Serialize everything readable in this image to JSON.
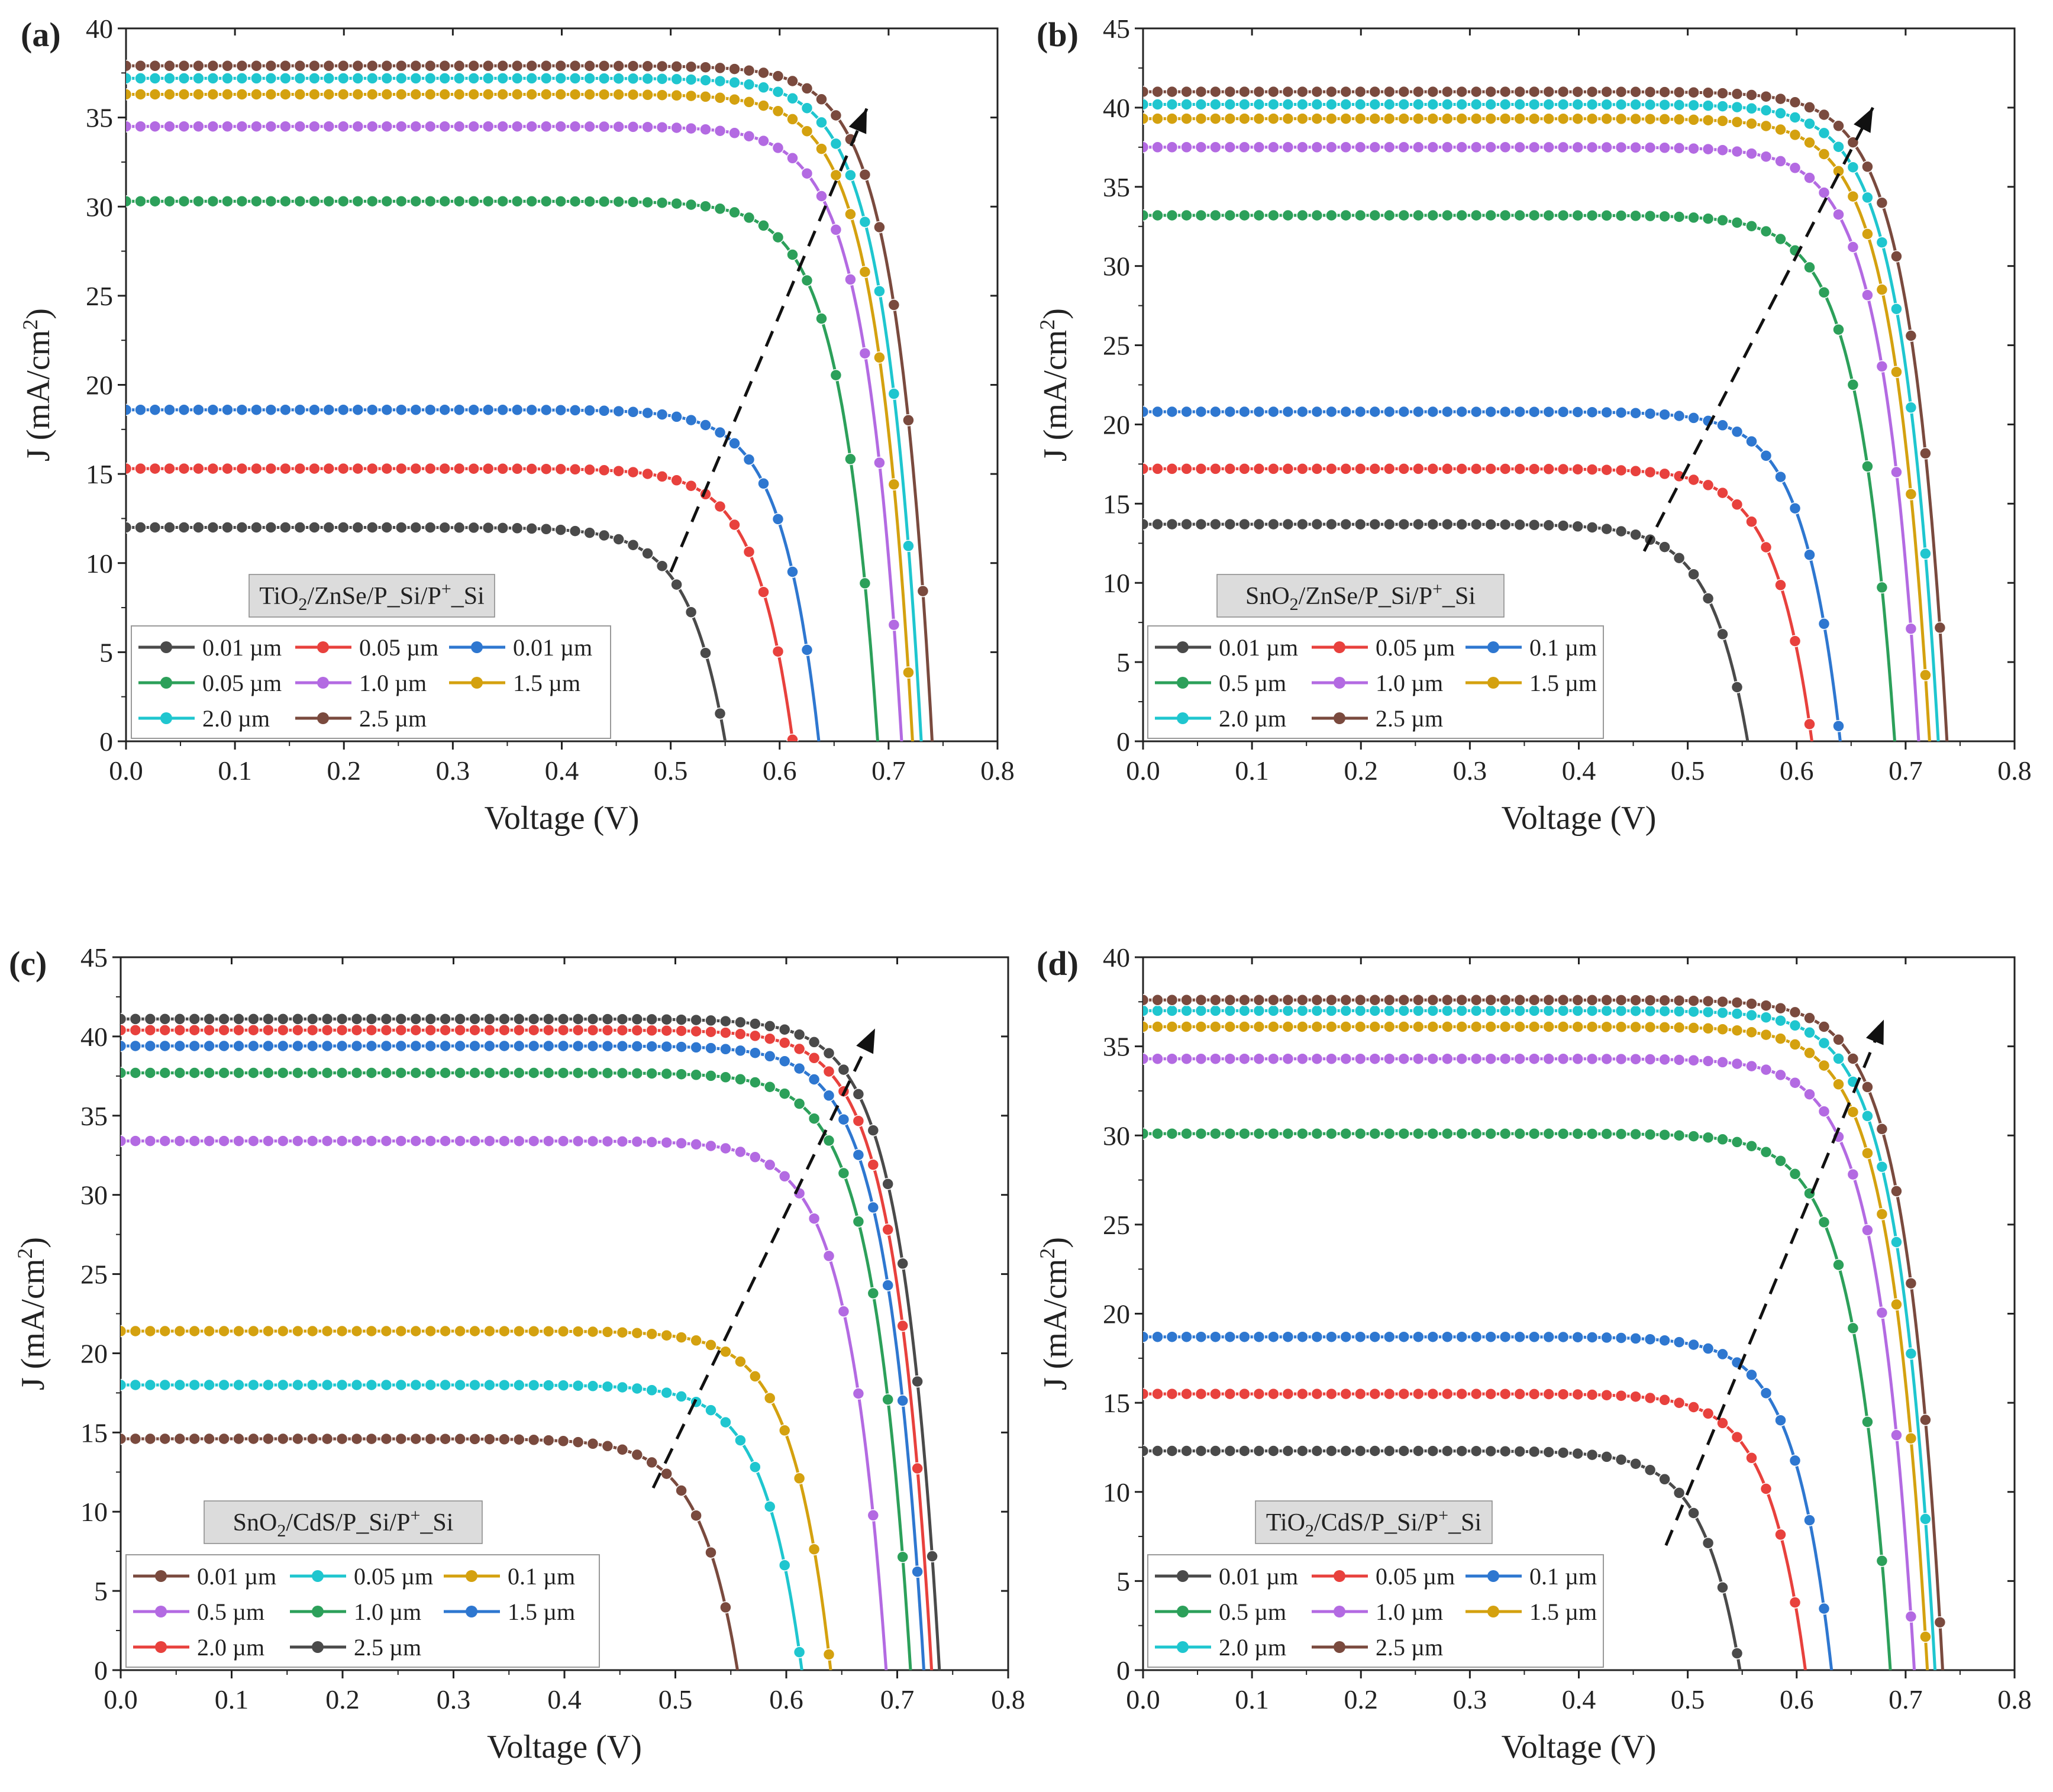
{
  "figure": {
    "xlabel": "Voltage (V)",
    "ylabel_main": "J (mA/cm",
    "ylabel_sup": "2",
    "ylabel_close": ")"
  },
  "chart_data": [
    {
      "panel": "(a)",
      "type": "line",
      "title_parts": [
        [
          "TiO",
          ""
        ],
        [
          "2",
          "sub"
        ],
        [
          "/ZnSe/P_Si/P",
          ""
        ],
        [
          "+",
          "sup"
        ],
        [
          "_Si",
          ""
        ]
      ],
      "xlabel": "Voltage (V)",
      "ylabel": "J (mA/cm2)",
      "xlim": [
        0,
        0.8
      ],
      "ylim": [
        0,
        40
      ],
      "xticks": [
        "0.0",
        "0.1",
        "0.2",
        "0.3",
        "0.4",
        "0.5",
        "0.6",
        "0.7",
        "0.8"
      ],
      "yticks": [
        "0",
        "5",
        "10",
        "15",
        "20",
        "25",
        "30",
        "35",
        "40"
      ],
      "legend_position": "bottom-left",
      "legend_cols": 3,
      "arrow": [
        [
          0.5,
          9.5
        ],
        [
          0.68,
          35.5
        ]
      ],
      "series": [
        {
          "name": "0.01 µm",
          "color": "#4a4a4a",
          "jsc": 12.0,
          "voc": 0.55
        },
        {
          "name": "0.05 µm",
          "color": "#e8413d",
          "jsc": 15.3,
          "voc": 0.612
        },
        {
          "name": "0.01 µm",
          "color": "#2e77d0",
          "jsc": 18.6,
          "voc": 0.636
        },
        {
          "name": "0.05 µm",
          "color": "#2ca05a",
          "jsc": 30.3,
          "voc": 0.69
        },
        {
          "name": "1.0 µm",
          "color": "#b36ae2",
          "jsc": 34.5,
          "voc": 0.712
        },
        {
          "name": "1.5 µm",
          "color": "#d4a10f",
          "jsc": 36.3,
          "voc": 0.722
        },
        {
          "name": "2.0 µm",
          "color": "#1fc6cf",
          "jsc": 37.2,
          "voc": 0.73
        },
        {
          "name": "2.5 µm",
          "color": "#7a4a3e",
          "jsc": 37.9,
          "voc": 0.74
        }
      ]
    },
    {
      "panel": "(b)",
      "type": "line",
      "title_parts": [
        [
          "SnO",
          ""
        ],
        [
          "2",
          "sub"
        ],
        [
          "/ZnSe/P_Si/P",
          ""
        ],
        [
          "+",
          "sup"
        ],
        [
          "_Si",
          ""
        ]
      ],
      "xlabel": "Voltage (V)",
      "ylabel": "J (mA/cm2)",
      "xlim": [
        0,
        0.8
      ],
      "ylim": [
        0,
        45
      ],
      "xticks": [
        "0.0",
        "0.1",
        "0.2",
        "0.3",
        "0.4",
        "0.5",
        "0.6",
        "0.7",
        "0.8"
      ],
      "yticks": [
        "0",
        "5",
        "10",
        "15",
        "20",
        "25",
        "30",
        "35",
        "40",
        "45"
      ],
      "legend_position": "bottom-left",
      "legend_cols": 3,
      "arrow": [
        [
          0.46,
          12.0
        ],
        [
          0.67,
          40.0
        ]
      ],
      "series": [
        {
          "name": "0.01 µm",
          "color": "#4a4a4a",
          "jsc": 13.7,
          "voc": 0.555
        },
        {
          "name": "0.05 µm",
          "color": "#e8413d",
          "jsc": 17.2,
          "voc": 0.614
        },
        {
          "name": "0.1 µm",
          "color": "#2e77d0",
          "jsc": 20.8,
          "voc": 0.64
        },
        {
          "name": "0.5 µm",
          "color": "#2ca05a",
          "jsc": 33.2,
          "voc": 0.69
        },
        {
          "name": "1.0 µm",
          "color": "#b36ae2",
          "jsc": 37.5,
          "voc": 0.712
        },
        {
          "name": "1.5 µm",
          "color": "#d4a10f",
          "jsc": 39.3,
          "voc": 0.722
        },
        {
          "name": "2.0 µm",
          "color": "#1fc6cf",
          "jsc": 40.2,
          "voc": 0.73
        },
        {
          "name": "2.5 µm",
          "color": "#7a4a3e",
          "jsc": 41.0,
          "voc": 0.738
        }
      ]
    },
    {
      "panel": "(c)",
      "type": "line",
      "title_parts": [
        [
          "SnO",
          ""
        ],
        [
          "2",
          "sub"
        ],
        [
          "/CdS/P_Si/P",
          ""
        ],
        [
          "+",
          "sup"
        ],
        [
          "_Si",
          ""
        ]
      ],
      "xlabel": "Voltage (V)",
      "ylabel": "J (mA/cm2)",
      "xlim": [
        0,
        0.8
      ],
      "ylim": [
        0,
        45
      ],
      "xticks": [
        "0.0",
        "0.1",
        "0.2",
        "0.3",
        "0.4",
        "0.5",
        "0.6",
        "0.7",
        "0.8"
      ],
      "yticks": [
        "0",
        "5",
        "10",
        "15",
        "20",
        "25",
        "30",
        "35",
        "40",
        "45"
      ],
      "legend_position": "bottom-left",
      "legend_cols": 3,
      "arrow": [
        [
          0.48,
          11.5
        ],
        [
          0.68,
          40.5
        ]
      ],
      "series": [
        {
          "name": "0.01 µm",
          "color": "#7a4a3e",
          "jsc": 14.6,
          "voc": 0.556
        },
        {
          "name": "0.05 µm",
          "color": "#1fc6cf",
          "jsc": 18.0,
          "voc": 0.614
        },
        {
          "name": "0.1 µm",
          "color": "#d4a10f",
          "jsc": 21.4,
          "voc": 0.64
        },
        {
          "name": "0.5 µm",
          "color": "#b36ae2",
          "jsc": 33.4,
          "voc": 0.69
        },
        {
          "name": "1.0 µm",
          "color": "#2ca05a",
          "jsc": 37.7,
          "voc": 0.712
        },
        {
          "name": "1.5 µm",
          "color": "#2e77d0",
          "jsc": 39.4,
          "voc": 0.724
        },
        {
          "name": "2.0 µm",
          "color": "#e8413d",
          "jsc": 40.4,
          "voc": 0.731
        },
        {
          "name": "2.5 µm",
          "color": "#4a4a4a",
          "jsc": 41.1,
          "voc": 0.738
        }
      ]
    },
    {
      "panel": "(d)",
      "type": "line",
      "title_parts": [
        [
          "TiO",
          ""
        ],
        [
          "2",
          "sub"
        ],
        [
          "/CdS/P_Si/P",
          ""
        ],
        [
          "+",
          "sup"
        ],
        [
          "_Si",
          ""
        ]
      ],
      "xlabel": "Voltage (V)",
      "ylabel": "J (mA/cm2)",
      "xlim": [
        0,
        0.8
      ],
      "ylim": [
        0,
        40
      ],
      "xticks": [
        "0.0",
        "0.1",
        "0.2",
        "0.3",
        "0.4",
        "0.5",
        "0.6",
        "0.7",
        "0.8"
      ],
      "yticks": [
        "0",
        "5",
        "10",
        "15",
        "20",
        "25",
        "30",
        "35",
        "40"
      ],
      "legend_position": "bottom-left",
      "legend_cols": 3,
      "arrow": [
        [
          0.48,
          7.0
        ],
        [
          0.68,
          36.5
        ]
      ],
      "series": [
        {
          "name": "0.01 µm",
          "color": "#4a4a4a",
          "jsc": 12.3,
          "voc": 0.548
        },
        {
          "name": "0.05 µm",
          "color": "#e8413d",
          "jsc": 15.5,
          "voc": 0.608
        },
        {
          "name": "0.1 µm",
          "color": "#2e77d0",
          "jsc": 18.7,
          "voc": 0.632
        },
        {
          "name": "0.5 µm",
          "color": "#2ca05a",
          "jsc": 30.1,
          "voc": 0.686
        },
        {
          "name": "1.0 µm",
          "color": "#b36ae2",
          "jsc": 34.3,
          "voc": 0.708
        },
        {
          "name": "1.5 µm",
          "color": "#d4a10f",
          "jsc": 36.1,
          "voc": 0.72
        },
        {
          "name": "2.0 µm",
          "color": "#1fc6cf",
          "jsc": 37.0,
          "voc": 0.727
        },
        {
          "name": "2.5 µm",
          "color": "#7a4a3e",
          "jsc": 37.6,
          "voc": 0.734
        }
      ]
    }
  ]
}
